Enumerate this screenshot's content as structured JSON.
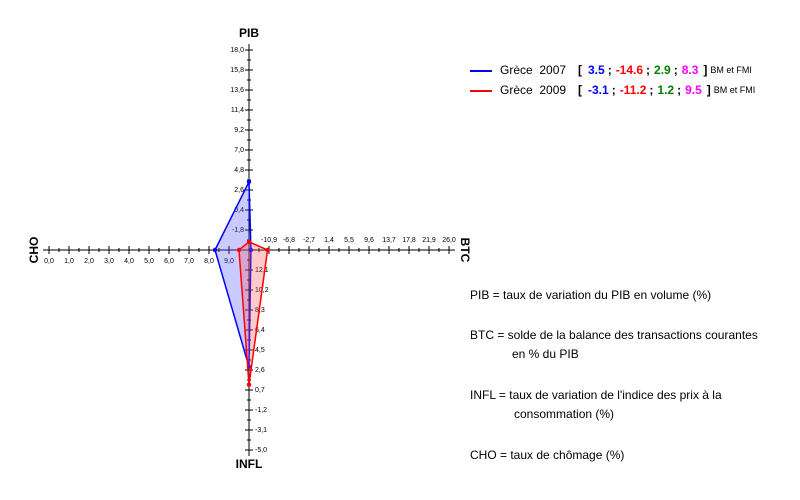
{
  "chart_data": {
    "type": "axis-star",
    "axes": [
      {
        "name": "PIB",
        "direction": "up",
        "value_color": "#0000ff",
        "lim": [
          -4,
          18
        ],
        "ticks": [
          {
            "value": -1.8,
            "label": "-1,8"
          },
          {
            "value": 0.4,
            "label": "0,4"
          },
          {
            "value": 2.6,
            "label": "2,6"
          },
          {
            "value": 4.8,
            "label": "4,8"
          },
          {
            "value": 7.0,
            "label": "7,0"
          },
          {
            "value": 9.2,
            "label": "9,2"
          },
          {
            "value": 11.4,
            "label": "11,4"
          },
          {
            "value": 13.6,
            "label": "13,6"
          },
          {
            "value": 15.8,
            "label": "15,8"
          },
          {
            "value": 18.0,
            "label": "18,0"
          }
        ]
      },
      {
        "name": "BTC",
        "direction": "right",
        "value_color": "#ff0000",
        "lim": [
          -15,
          26
        ],
        "ticks": [
          {
            "value": -10.9,
            "label": "-10,9"
          },
          {
            "value": -6.8,
            "label": "-6,8"
          },
          {
            "value": -2.7,
            "label": "-2,7"
          },
          {
            "value": 1.4,
            "label": "1,4"
          },
          {
            "value": 5.5,
            "label": "5,5"
          },
          {
            "value": 9.6,
            "label": "9,6"
          },
          {
            "value": 13.7,
            "label": "13,7"
          },
          {
            "value": 17.8,
            "label": "17,8"
          },
          {
            "value": 21.9,
            "label": "21,9"
          },
          {
            "value": 26.0,
            "label": "26,0"
          }
        ]
      },
      {
        "name": "INFL",
        "direction": "down",
        "value_color": "#008000",
        "lim": [
          14,
          -5
        ],
        "ticks": [
          {
            "value": 12.1,
            "label": "12,1"
          },
          {
            "value": 10.2,
            "label": "10,2"
          },
          {
            "value": 8.3,
            "label": "8,3"
          },
          {
            "value": 6.4,
            "label": "6,4"
          },
          {
            "value": 4.5,
            "label": "4,5"
          },
          {
            "value": 2.6,
            "label": "2,6"
          },
          {
            "value": 0.7,
            "label": "0,7"
          },
          {
            "value": -1.2,
            "label": "-1,2"
          },
          {
            "value": -3.1,
            "label": "-3,1"
          },
          {
            "value": -5.0,
            "label": "-5,0"
          }
        ]
      },
      {
        "name": "CHO",
        "direction": "left",
        "value_color": "#ff00ff",
        "lim": [
          10,
          0
        ],
        "ticks": [
          {
            "value": 9.0,
            "label": "9,0"
          },
          {
            "value": 8.0,
            "label": "8,0"
          },
          {
            "value": 7.0,
            "label": "7,0"
          },
          {
            "value": 6.0,
            "label": "6,0"
          },
          {
            "value": 5.0,
            "label": "5,0"
          },
          {
            "value": 4.0,
            "label": "4,0"
          },
          {
            "value": 3.0,
            "label": "3,0"
          },
          {
            "value": 2.0,
            "label": "2,0"
          },
          {
            "value": 1.0,
            "label": "1,0"
          },
          {
            "value": 0.0,
            "label": "0,0"
          }
        ]
      }
    ],
    "series": [
      {
        "name": "Grèce  2007",
        "color": "#0000ff",
        "fill": "rgba(80,80,255,0.3)",
        "values": [
          3.5,
          -14.6,
          2.9,
          8.3
        ],
        "source": "BM et FMI"
      },
      {
        "name": "Grèce  2009",
        "color": "#ff0000",
        "fill": "rgba(255,80,80,0.3)",
        "values": [
          -3.1,
          -11.2,
          1.2,
          9.5
        ],
        "source": "BM et FMI"
      }
    ],
    "legend_punctuation": [
      "[",
      ";",
      "]"
    ],
    "annotations": [
      "PIB = taux de variation du PIB en volume (%)",
      "BTC = solde de la balance des transactions courantes",
      "en % du PIB",
      "INFL = taux de variation de l'indice des prix à la",
      "consommation (%)",
      "CHO = taux de chômage (%)"
    ]
  }
}
